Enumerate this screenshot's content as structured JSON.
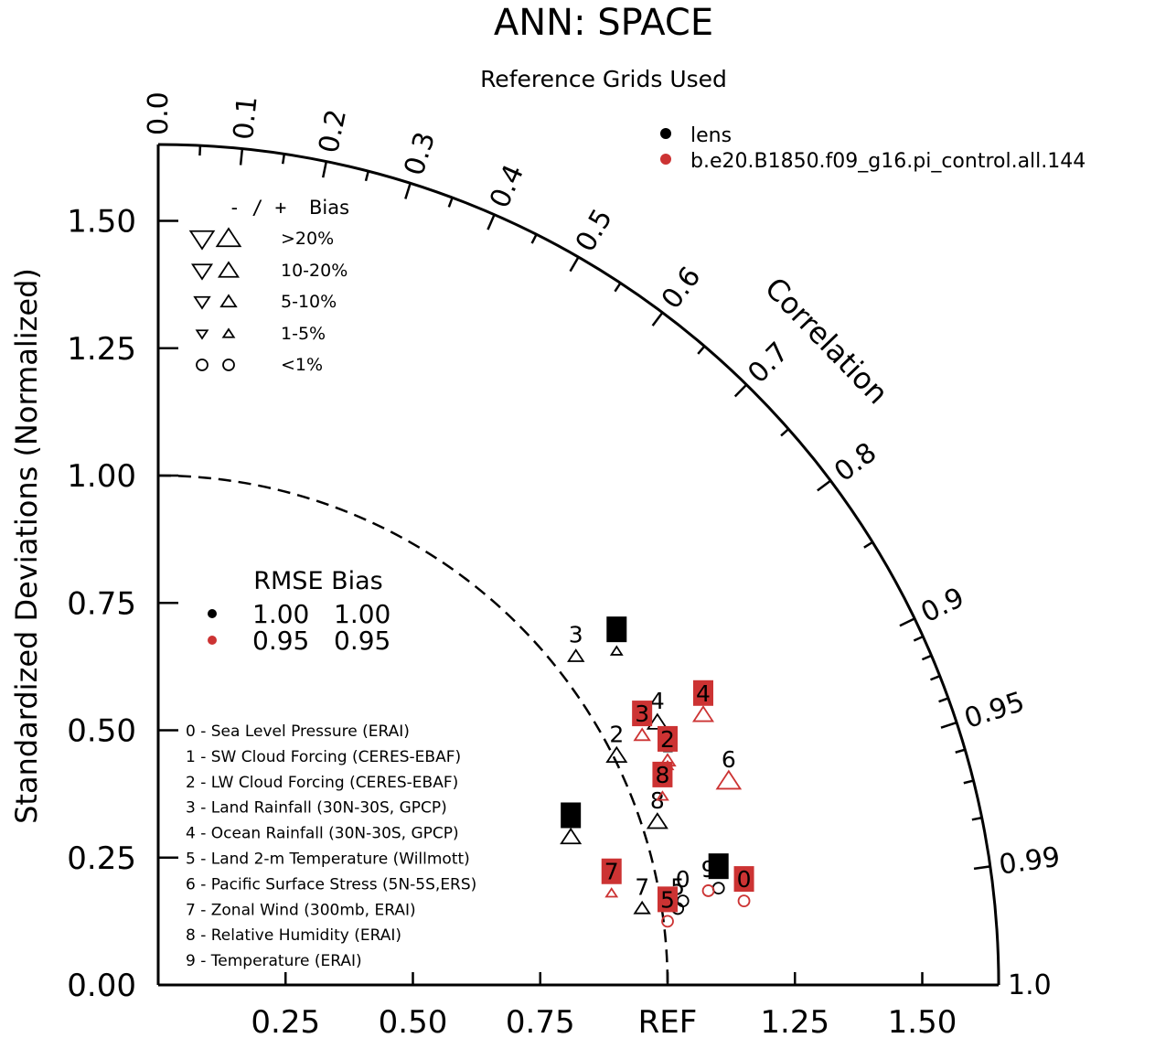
{
  "chart_data": {
    "type": "scatter",
    "subtype": "taylor-diagram",
    "title": "ANN: SPACE",
    "subtitle": "Reference Grids Used",
    "ylabel": "Standardized Deviations (Normalized)",
    "arc_label": "Correlation",
    "ref_label": "REF",
    "xlim": [
      0,
      1.65
    ],
    "ylim": [
      0,
      1.65
    ],
    "x_ticks": [
      "0.25",
      "0.50",
      "0.75",
      "1.25",
      "1.50"
    ],
    "x_tick_values": [
      0.25,
      0.5,
      0.75,
      1.25,
      1.5
    ],
    "y_ticks": [
      "0.00",
      "0.25",
      "0.50",
      "0.75",
      "1.00",
      "1.25",
      "1.50"
    ],
    "y_tick_values": [
      0.0,
      0.25,
      0.5,
      0.75,
      1.0,
      1.25,
      1.5
    ],
    "corr_labels": [
      "0.0",
      "0.1",
      "0.2",
      "0.3",
      "0.4",
      "0.5",
      "0.6",
      "0.7",
      "0.8",
      "0.9",
      "0.95",
      "0.99",
      "1.0"
    ],
    "corr_label_values": [
      0.0,
      0.1,
      0.2,
      0.3,
      0.4,
      0.5,
      0.6,
      0.7,
      0.8,
      0.9,
      0.95,
      0.99,
      1.0
    ],
    "corr_minor_ticks": [
      0.05,
      0.15,
      0.25,
      0.35,
      0.45,
      0.55,
      0.65,
      0.75,
      0.85,
      0.91,
      0.92,
      0.93,
      0.94,
      0.96,
      0.97,
      0.98
    ],
    "ref_circle_radius": 1.0,
    "colors": {
      "lens": "#000000",
      "case": "#cc3333"
    },
    "series": [
      {
        "name": "lens",
        "color": "#000000",
        "points": [
          {
            "id": "0",
            "x": 1.03,
            "y": 0.165,
            "marker": "circle",
            "label_style": "text"
          },
          {
            "id": "1",
            "x": 0.9,
            "y": 0.655,
            "marker": "triangle-up-xs",
            "label_style": "box"
          },
          {
            "id": "2",
            "x": 0.9,
            "y": 0.45,
            "marker": "triangle-up-m",
            "label_style": "text"
          },
          {
            "id": "3",
            "x": 0.82,
            "y": 0.645,
            "marker": "triangle-up-s",
            "label_style": "text"
          },
          {
            "id": "4",
            "x": 0.98,
            "y": 0.515,
            "marker": "triangle-up-m",
            "label_style": "text"
          },
          {
            "id": "5",
            "x": 1.02,
            "y": 0.15,
            "marker": "circle",
            "label_style": "text"
          },
          {
            "id": "6",
            "x": 0.81,
            "y": 0.29,
            "marker": "triangle-up-m",
            "label_style": "box"
          },
          {
            "id": "7",
            "x": 0.95,
            "y": 0.15,
            "marker": "triangle-up-s",
            "label_style": "text"
          },
          {
            "id": "8",
            "x": 0.98,
            "y": 0.32,
            "marker": "triangle-up-m",
            "label_style": "text"
          },
          {
            "id": "9",
            "x": 1.1,
            "y": 0.19,
            "marker": "circle",
            "label_style": "box"
          }
        ]
      },
      {
        "name": "b.e20.B1850.f09_g16.pi_control.all.144",
        "color": "#cc3333",
        "points": [
          {
            "id": "0",
            "x": 1.15,
            "y": 0.165,
            "marker": "circle",
            "label_style": "box"
          },
          {
            "id": "1",
            "x": 1.0,
            "y": 0.43,
            "marker": "triangle-up-xs",
            "label_style": "text"
          },
          {
            "id": "2",
            "x": 1.0,
            "y": 0.44,
            "marker": "triangle-up-s",
            "label_style": "box"
          },
          {
            "id": "3",
            "x": 0.95,
            "y": 0.49,
            "marker": "triangle-up-s",
            "label_style": "box"
          },
          {
            "id": "4",
            "x": 1.07,
            "y": 0.53,
            "marker": "triangle-up-m",
            "label_style": "box"
          },
          {
            "id": "5",
            "x": 1.0,
            "y": 0.125,
            "marker": "circle",
            "label_style": "box"
          },
          {
            "id": "6",
            "x": 1.12,
            "y": 0.4,
            "marker": "triangle-up-l",
            "label_style": "text"
          },
          {
            "id": "7",
            "x": 0.89,
            "y": 0.18,
            "marker": "triangle-up-xs",
            "label_style": "box"
          },
          {
            "id": "8",
            "x": 0.99,
            "y": 0.37,
            "marker": "triangle-up-xs",
            "label_style": "box"
          },
          {
            "id": "9",
            "x": 1.08,
            "y": 0.185,
            "marker": "circle",
            "label_style": "text"
          }
        ]
      }
    ],
    "variables": [
      "0 - Sea Level Pressure (ERAI)",
      "1 - SW Cloud Forcing (CERES-EBAF)",
      "2 - LW Cloud Forcing (CERES-EBAF)",
      "3 - Land Rainfall (30N-30S, GPCP)",
      "4 - Ocean Rainfall (30N-30S, GPCP)",
      "5 - Land 2-m Temperature (Willmott)",
      "6 - Pacific Surface Stress (5N-5S,ERS)",
      "7 - Zonal Wind (300mb, ERAI)",
      "8 - Relative Humidity (ERAI)",
      "9 - Temperature (ERAI)"
    ],
    "bias_legend": {
      "header_signs": "- / +",
      "header_label": "Bias",
      "rows": [
        {
          "label": ">20%",
          "marker": "triangle-l"
        },
        {
          "label": "10-20%",
          "marker": "triangle-m"
        },
        {
          "label": "5-10%",
          "marker": "triangle-s"
        },
        {
          "label": "1-5%",
          "marker": "triangle-xs"
        },
        {
          "label": "<1%",
          "marker": "circle"
        }
      ]
    },
    "rmse_bias_table": {
      "header": "RMSE Bias",
      "rows": [
        {
          "color": "#000000",
          "rmse": "1.00",
          "bias": "1.00"
        },
        {
          "color": "#cc3333",
          "rmse": "0.95",
          "bias": "0.95"
        }
      ]
    },
    "legend": [
      {
        "name": "lens",
        "color": "#000000"
      },
      {
        "name": "b.e20.B1850.f09_g16.pi_control.all.144",
        "color": "#cc3333"
      }
    ]
  }
}
